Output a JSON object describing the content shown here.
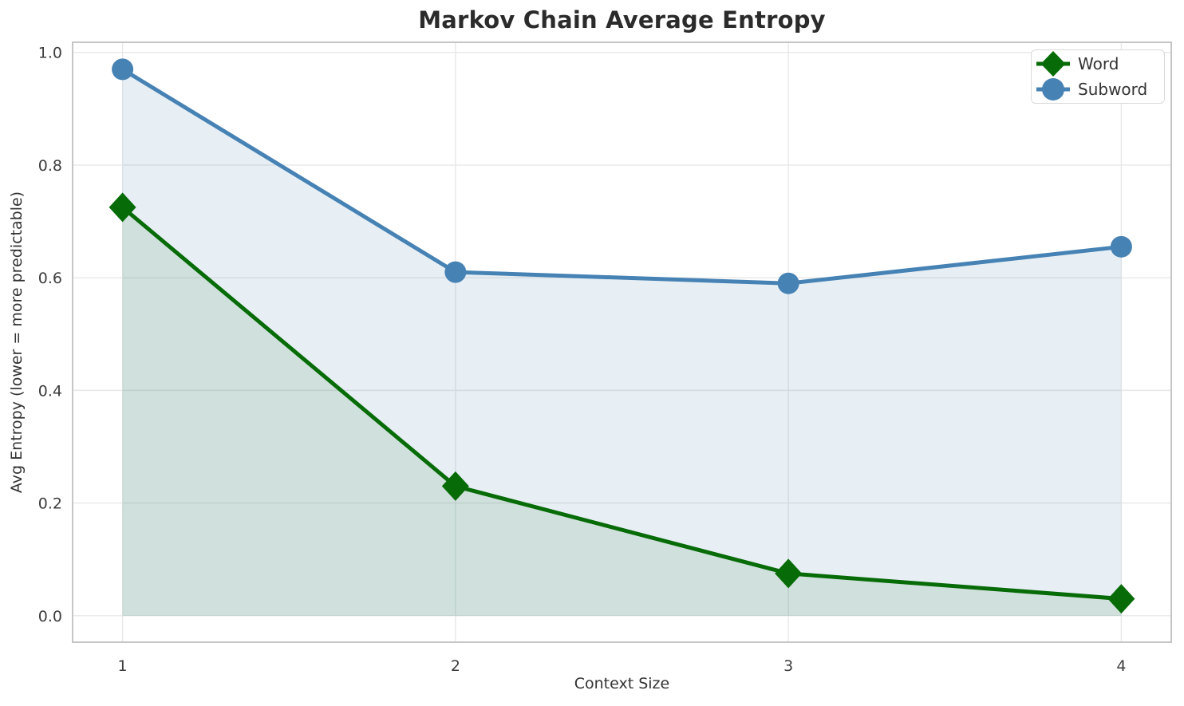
{
  "chart_data": {
    "type": "line",
    "title": "Markov Chain Average Entropy",
    "xlabel": "Context Size",
    "ylabel": "Avg Entropy (lower = more predictable)",
    "x": [
      1,
      2,
      3,
      4
    ],
    "xtick_labels": [
      "1",
      "2",
      "3",
      "4"
    ],
    "ytick_values": [
      0.0,
      0.2,
      0.4,
      0.6,
      0.8,
      1.0
    ],
    "ytick_labels": [
      "0.0",
      "0.2",
      "0.4",
      "0.6",
      "0.8",
      "1.0"
    ],
    "xlim": [
      0.85,
      4.15
    ],
    "ylim": [
      -0.047,
      1.018
    ],
    "grid": true,
    "legend_position": "upper right",
    "series": [
      {
        "name": "Word",
        "marker": "diamond",
        "color": "#076c07",
        "area_fill": "rgba(7, 108, 7, 0.10)",
        "values": [
          0.725,
          0.23,
          0.075,
          0.03
        ]
      },
      {
        "name": "Subword",
        "marker": "circle",
        "color": "#4682b4",
        "area_fill": "rgba(70, 130, 180, 0.13)",
        "values": [
          0.97,
          0.61,
          0.59,
          0.655
        ]
      }
    ],
    "style": {
      "grid_color": "#e8e8e8",
      "spine_color": "#c6c6c6",
      "plot_background": "#ffffff"
    }
  }
}
